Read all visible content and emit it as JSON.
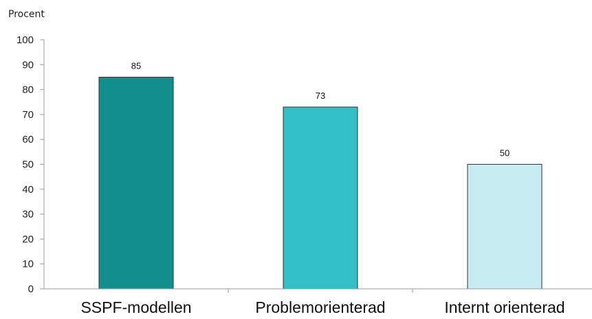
{
  "chart_data": {
    "type": "bar",
    "title": "",
    "xlabel": "",
    "ylabel": "Procent",
    "ylim": [
      0,
      100
    ],
    "yticks": [
      0,
      10,
      20,
      30,
      40,
      50,
      60,
      70,
      80,
      90,
      100
    ],
    "grid": false,
    "categories": [
      "SSPF-modellen",
      "Problemorienterad",
      "Internt orienterad"
    ],
    "values": [
      85,
      73,
      50
    ],
    "colors": [
      "#128e8c",
      "#33bfc6",
      "#c8eaf3"
    ]
  }
}
